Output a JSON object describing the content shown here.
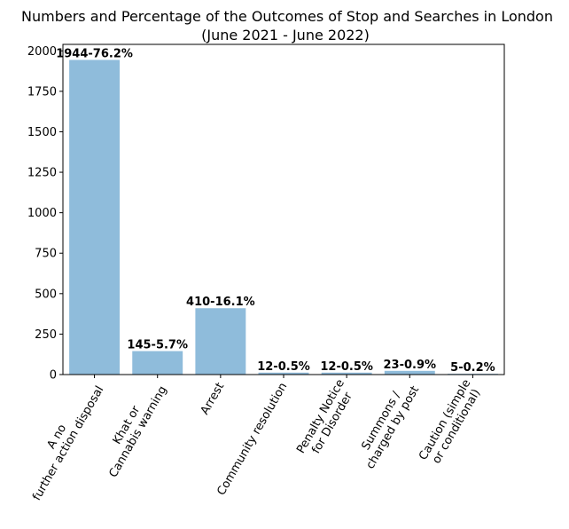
{
  "chart_data": {
    "type": "bar",
    "title": "Numbers and Percentage of the Outcomes of Stop and Searches in London",
    "subtitle": "(June 2021 - June 2022)",
    "categories": [
      "A no\nfurther action disposal",
      "Khat or\nCannabis warning",
      "Arrest",
      "Community resolution",
      "Penalty Notice\nfor Disorder",
      "Summons /\ncharged by post",
      "Caution (simple\nor conditional)"
    ],
    "values": [
      1944,
      145,
      410,
      12,
      12,
      23,
      5
    ],
    "data_labels": [
      "1944-76.2%",
      "145-5.7%",
      "410-16.1%",
      "12-0.5%",
      "12-0.5%",
      "23-0.9%",
      "5-0.2%"
    ],
    "ylim": [
      0,
      2040
    ],
    "yticks": [
      0,
      250,
      500,
      750,
      1000,
      1250,
      1500,
      1750,
      2000
    ],
    "xlabel": "",
    "ylabel": "",
    "bar_color": "#8fbcdb",
    "grid": false
  }
}
